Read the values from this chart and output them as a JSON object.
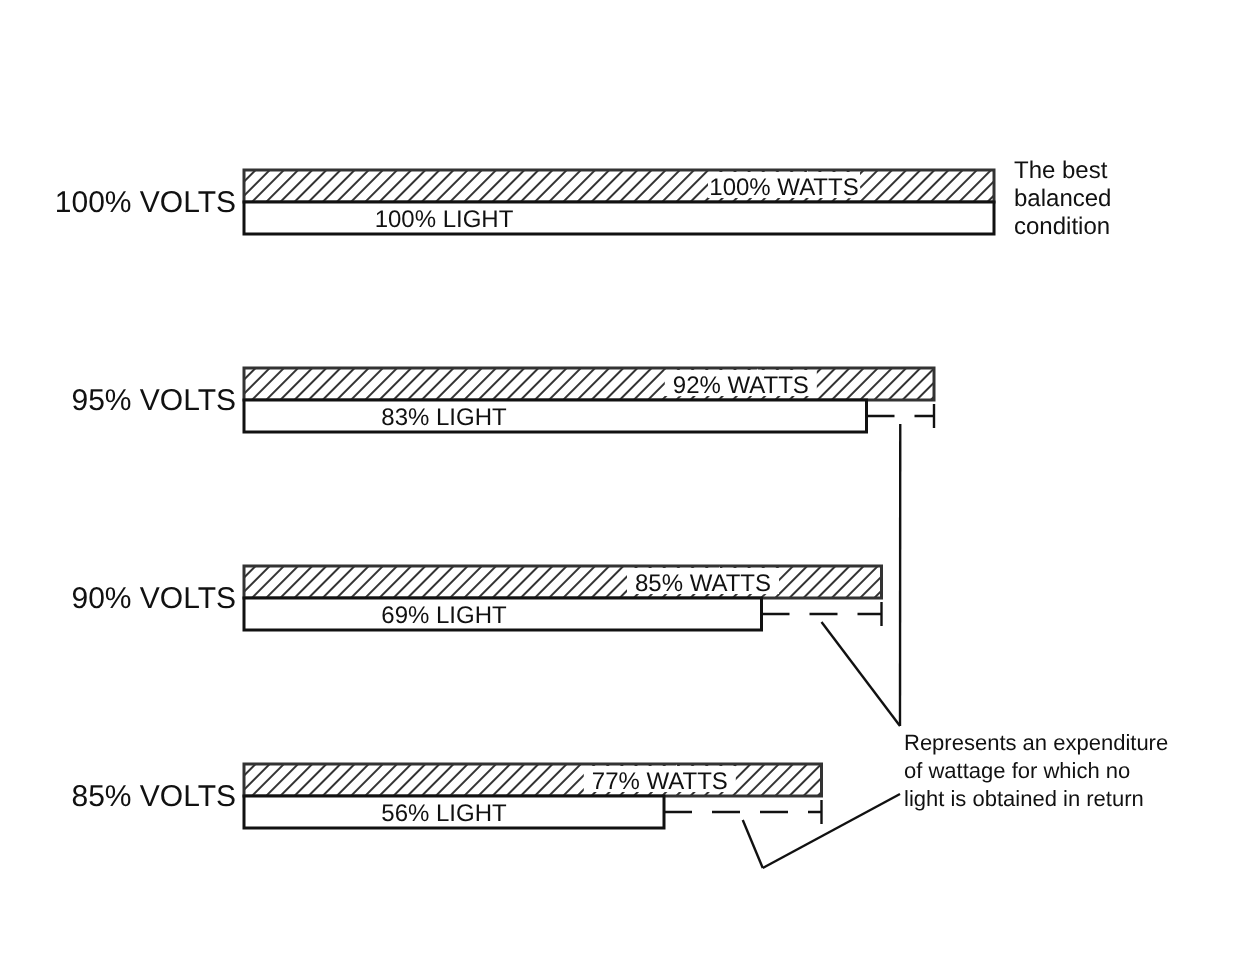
{
  "chart_data": {
    "type": "bar",
    "orientation": "horizontal",
    "categories": [
      "100% VOLTS",
      "95% VOLTS",
      "90% VOLTS",
      "85% VOLTS"
    ],
    "series": [
      {
        "color": "#333333",
        "values": [
          100,
          92,
          85,
          77
        ],
        "value_labels": [
          "100% WATTS",
          "92% WATTS",
          "85% WATTS",
          "77% WATTS"
        ]
      },
      {
        "color": "#ffffff",
        "values": [
          100,
          83,
          69,
          56
        ],
        "value_labels": [
          "100% LIGHT",
          "83% LIGHT",
          "69% LIGHT",
          "56% LIGHT"
        ]
      }
    ],
    "annotations": [
      "The best balanced condition",
      "Represents an expenditure of wattage for which no light is obtained in return"
    ]
  }
}
